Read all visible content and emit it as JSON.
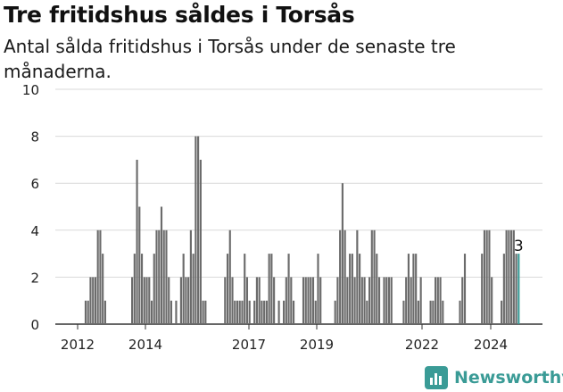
{
  "title": "Tre fritidshus såldes i Torsås",
  "subtitle": "Antal sålda fritidshus i Torsås under de senaste tre månaderna.",
  "brand": {
    "name": "Newsworthy",
    "icon": "newsworthy-logo-icon",
    "color": "#3a9b96"
  },
  "chart_data": {
    "type": "bar",
    "title": "Tre fritidshus såldes i Torsås",
    "subtitle": "Antal sålda fritidshus i Torsås under de senaste tre månaderna.",
    "xlabel": "",
    "ylabel": "",
    "ylim": [
      0,
      10
    ],
    "yticks": [
      0,
      2,
      4,
      6,
      8,
      10
    ],
    "xticks": [
      "2012",
      "2014",
      "2017",
      "2019",
      "2022",
      "2024"
    ],
    "grid": true,
    "bar_color": "#6b6b6b",
    "highlight_color": "#3a9b96",
    "annotation": {
      "text": "3",
      "target": "last"
    },
    "series": [
      {
        "values": [
          0,
          0,
          0,
          0,
          0,
          0,
          0,
          0,
          0,
          0,
          0,
          0,
          1,
          1,
          2,
          2,
          2,
          4,
          4,
          3,
          1,
          0,
          0,
          0,
          0,
          0,
          0,
          0,
          0,
          0,
          0,
          2,
          3,
          7,
          5,
          3,
          2,
          2,
          2,
          1,
          3,
          4,
          4,
          5,
          4,
          4,
          2,
          1,
          0,
          1,
          0,
          2,
          3,
          2,
          2,
          4,
          3,
          8,
          8,
          7,
          1,
          1,
          0,
          0,
          0,
          0,
          0,
          0,
          0,
          2,
          3,
          4,
          2,
          1,
          1,
          1,
          1,
          3,
          2,
          1,
          0,
          1,
          2,
          2,
          1,
          1,
          1,
          3,
          3,
          2,
          0,
          1,
          0,
          1,
          2,
          3,
          2,
          1,
          0,
          0,
          0,
          2,
          2,
          2,
          2,
          2,
          1,
          3,
          2,
          0,
          0,
          0,
          0,
          0,
          1,
          2,
          4,
          6,
          4,
          2,
          3,
          3,
          2,
          4,
          3,
          2,
          2,
          1,
          2,
          4,
          4,
          3,
          2,
          0,
          2,
          2,
          2,
          2,
          0,
          0,
          0,
          0,
          1,
          2,
          3,
          2,
          3,
          3,
          1,
          2,
          0,
          0,
          0,
          1,
          1,
          2,
          2,
          2,
          1,
          0,
          0,
          0,
          0,
          0,
          0,
          1,
          2,
          3,
          0,
          0,
          0,
          0,
          0,
          0,
          3,
          4,
          4,
          4,
          2,
          0,
          0,
          0,
          1,
          3,
          4,
          4,
          4,
          4,
          3,
          3
        ]
      }
    ]
  }
}
